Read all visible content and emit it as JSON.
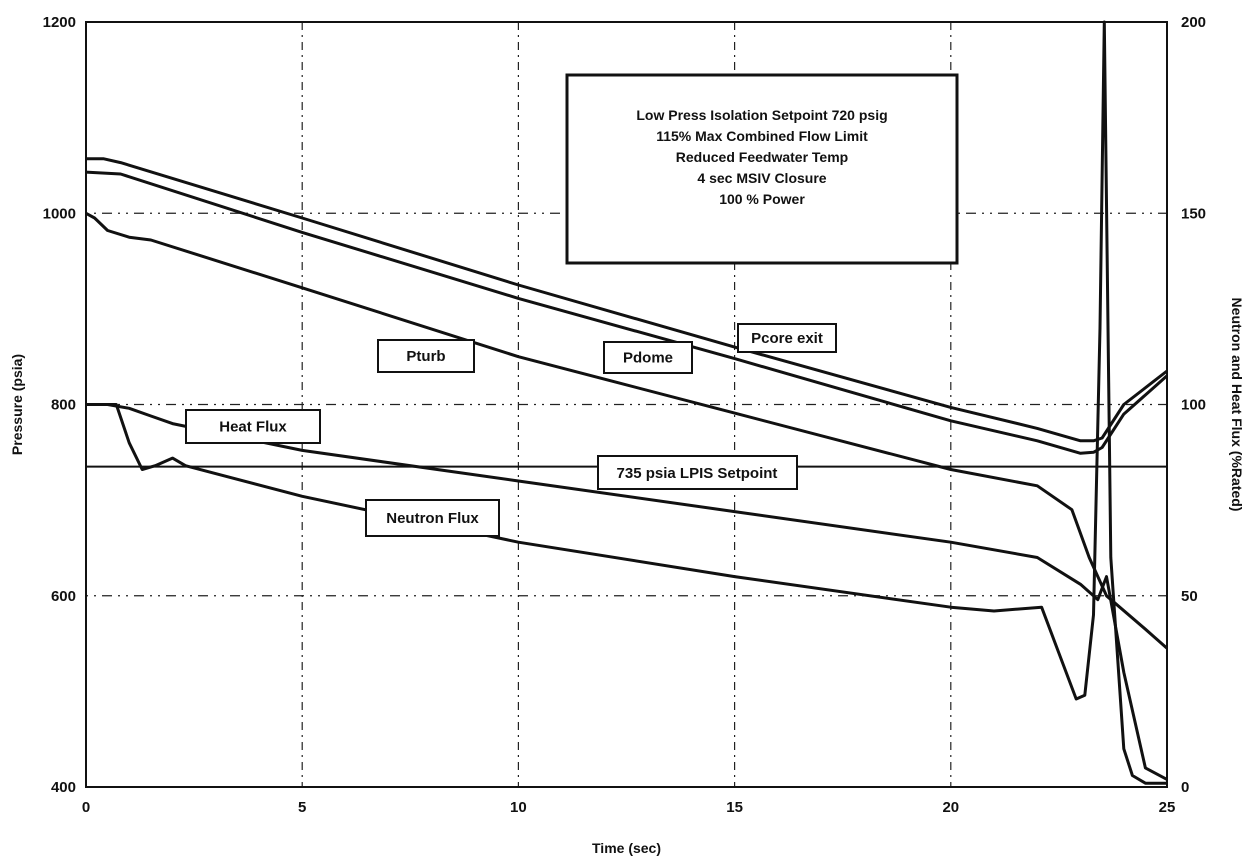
{
  "chart_data": {
    "type": "line",
    "title": "",
    "xlabel": "Time (sec)",
    "ylabel": "Pressure (psia)",
    "y2label": "Neutron and Heat Flux (%Rated)",
    "xlim": [
      0,
      25
    ],
    "ylim": [
      400,
      1200
    ],
    "y2lim": [
      0,
      200
    ],
    "x_ticks": [
      0,
      5,
      10,
      15,
      20,
      25
    ],
    "y_ticks": [
      400,
      600,
      800,
      1000,
      1200
    ],
    "y2_ticks": [
      0,
      50,
      100,
      150,
      200
    ],
    "grid": true,
    "annotation_lines": [
      "Low Press Isolation Setpoint 720 psig",
      "115% Max Combined Flow Limit",
      "Reduced Feedwater Temp",
      "4 sec MSIV Closure",
      "100 % Power"
    ],
    "setpoint": {
      "label": "735 psia LPIS Setpoint",
      "value": 735
    },
    "series": [
      {
        "name": "Pcore exit",
        "axis": "left",
        "color": "#111111",
        "x": [
          0,
          0.4,
          0.8,
          5,
          10,
          15,
          20,
          22,
          23,
          23.3,
          23.5,
          24,
          25
        ],
        "y": [
          1057,
          1057,
          1053,
          995,
          925,
          860,
          797,
          775,
          762,
          762,
          765,
          800,
          835
        ]
      },
      {
        "name": "Pdome",
        "axis": "left",
        "color": "#111111",
        "x": [
          0,
          0.8,
          5,
          10,
          15,
          20,
          22,
          23,
          23.3,
          23.5,
          24,
          25
        ],
        "y": [
          1043,
          1041,
          980,
          911,
          848,
          783,
          762,
          749,
          750,
          755,
          790,
          830
        ]
      },
      {
        "name": "Pturb",
        "axis": "left",
        "color": "#111111",
        "x": [
          0,
          0.2,
          0.5,
          1,
          1.5,
          5,
          10,
          15,
          20,
          22,
          22.8,
          23.2,
          23.6,
          24.5,
          25
        ],
        "y": [
          1000,
          995,
          982,
          975,
          972,
          922,
          850,
          791,
          732,
          715,
          690,
          640,
          600,
          565,
          545
        ]
      },
      {
        "name": "Heat Flux",
        "axis": "right",
        "color": "#111111",
        "x": [
          0,
          0.5,
          1,
          1.5,
          2,
          5,
          10,
          15,
          20,
          22,
          23,
          23.4,
          23.6,
          24,
          24.5,
          25
        ],
        "y": [
          100,
          100,
          99,
          97,
          95,
          88,
          80,
          72,
          64,
          60,
          53,
          49,
          55,
          30,
          5,
          2
        ]
      },
      {
        "name": "Neutron Flux",
        "axis": "right",
        "color": "#111111",
        "x": [
          0,
          0.7,
          1,
          1.3,
          1.6,
          2,
          2.3,
          5,
          10,
          15,
          20,
          21,
          22.1,
          22.5,
          22.9,
          23.1,
          23.3,
          23.45,
          23.55,
          23.7,
          24,
          24.2,
          24.5,
          25
        ],
        "y": [
          100,
          100,
          90,
          83,
          84,
          86,
          84,
          76,
          64,
          55,
          47,
          46,
          47,
          35,
          23,
          24,
          45,
          120,
          200,
          60,
          10,
          3,
          1,
          1
        ]
      }
    ]
  }
}
